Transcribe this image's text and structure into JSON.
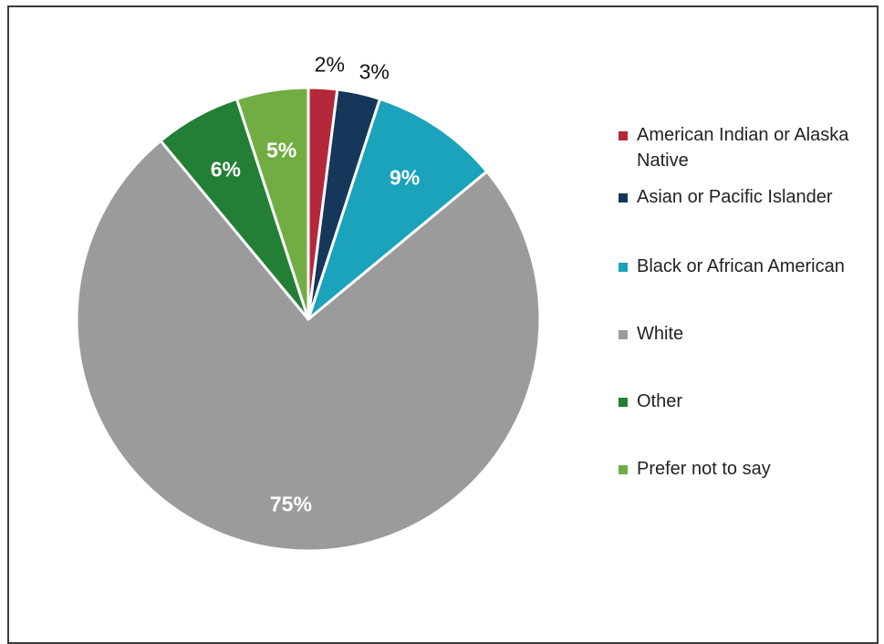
{
  "chart_data": {
    "type": "pie",
    "title": "",
    "start_angle_deg": 0,
    "slices": [
      {
        "label": "American Indian or Alaska Native",
        "value": 2,
        "display": "2%",
        "color": "#b5283a",
        "label_inside": false,
        "label_color": "#111111"
      },
      {
        "label": "Asian or Pacific Islander",
        "value": 3,
        "display": "3%",
        "color": "#15375a",
        "label_inside": false,
        "label_color": "#111111"
      },
      {
        "label": "Black or African American",
        "value": 9,
        "display": "9%",
        "color": "#1aa3bb",
        "label_inside": true,
        "label_color": "#ffffff"
      },
      {
        "label": "White",
        "value": 75,
        "display": "75%",
        "color": "#9b9b9b",
        "label_inside": true,
        "label_color": "#ffffff"
      },
      {
        "label": "Other",
        "value": 6,
        "display": "6%",
        "color": "#237f36",
        "label_inside": true,
        "label_color": "#ffffff"
      },
      {
        "label": "Prefer not to say",
        "value": 5,
        "display": "5%",
        "color": "#72ad44",
        "label_inside": true,
        "label_color": "#ffffff"
      }
    ],
    "legend_position": "right"
  }
}
